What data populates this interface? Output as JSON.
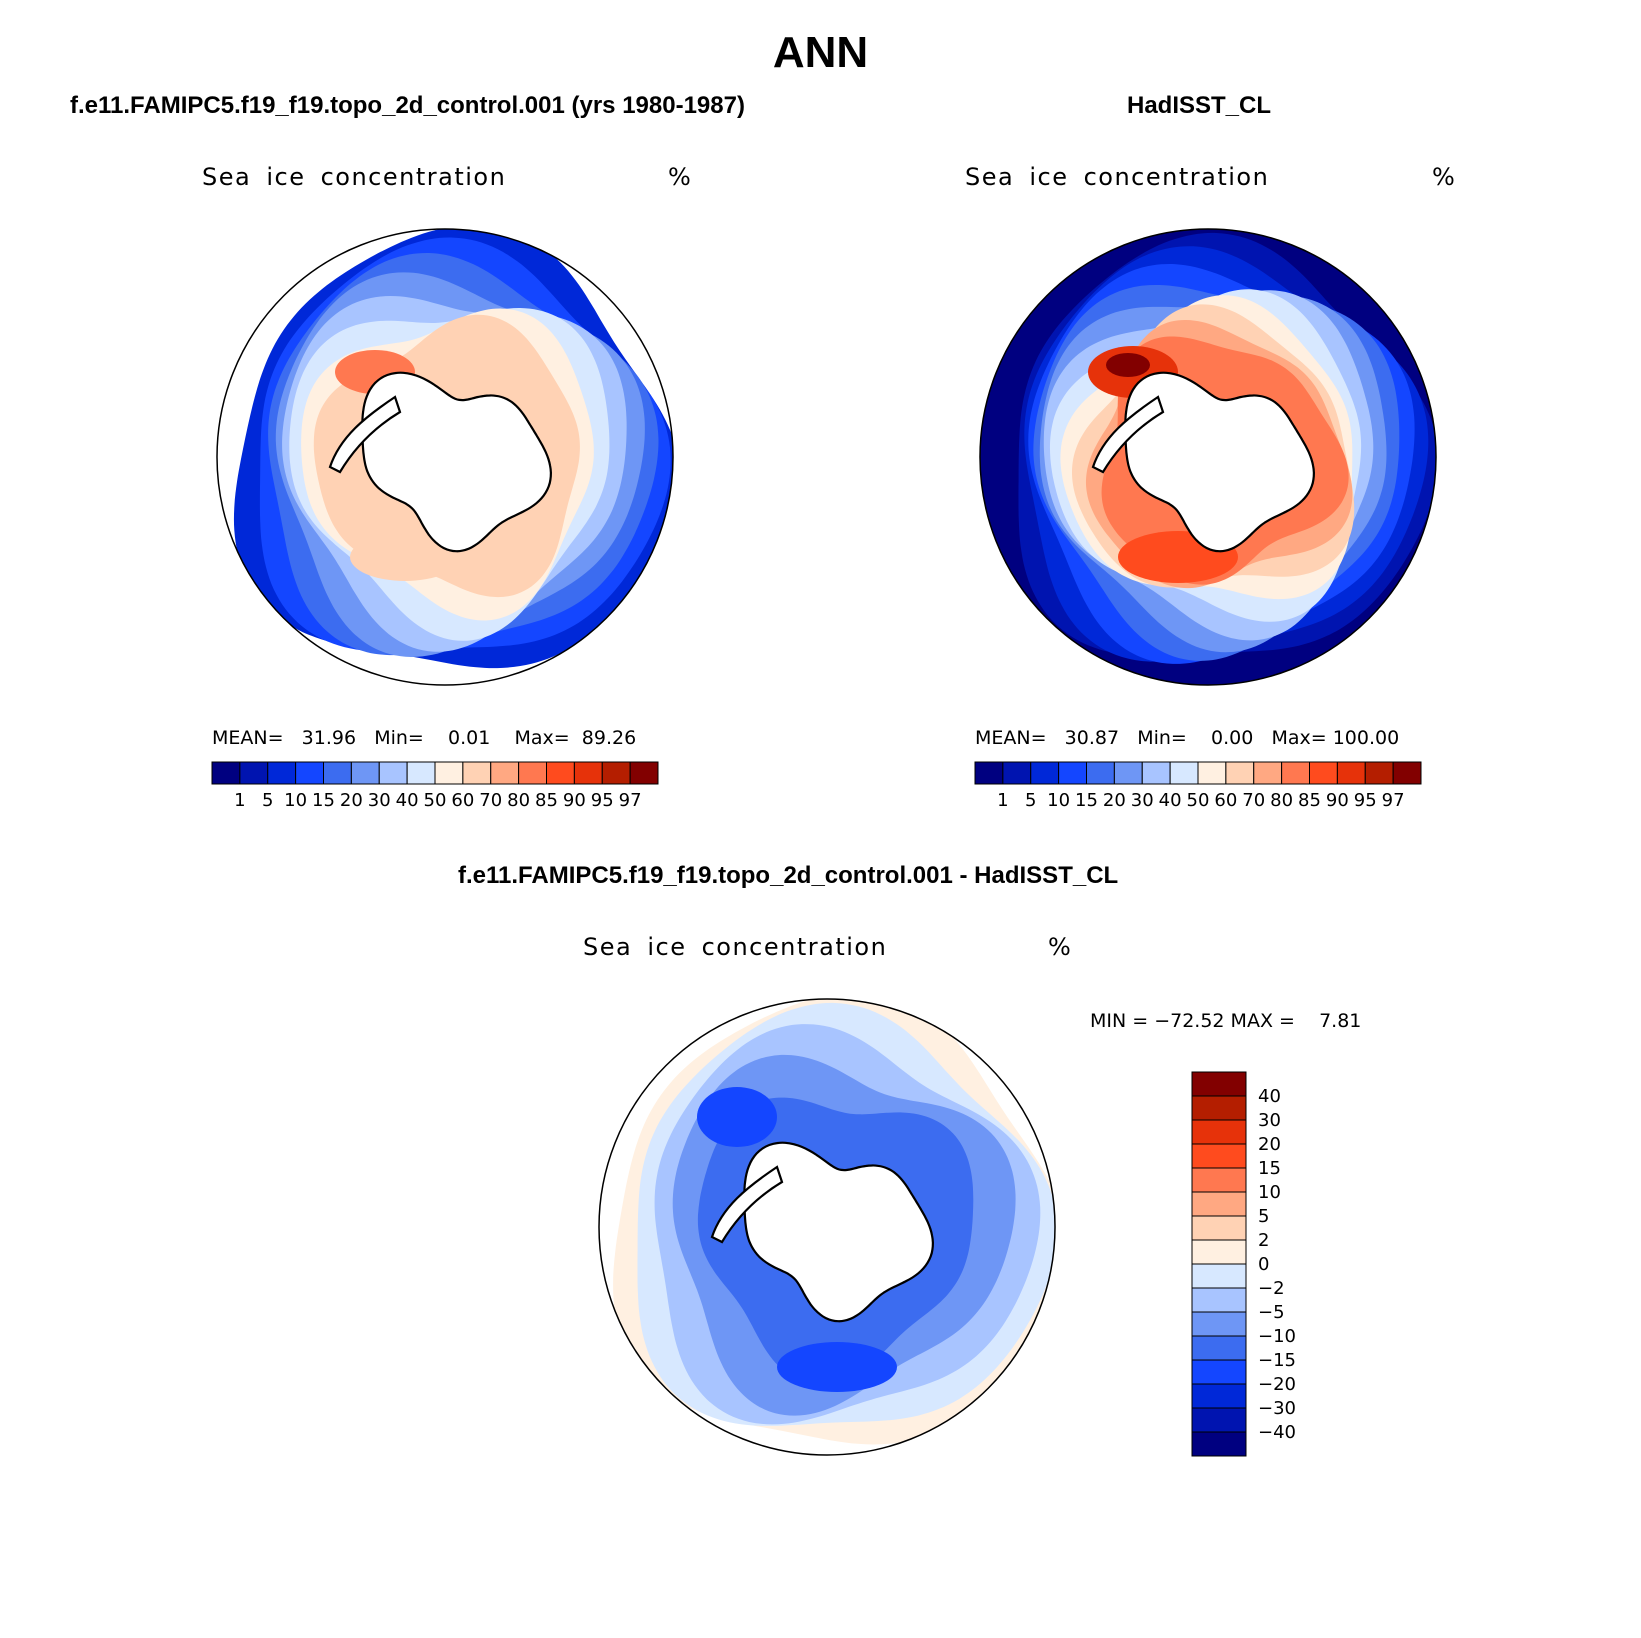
{
  "page": {
    "title": "ANN"
  },
  "colors": {
    "levels_main": [
      "#000080",
      "#0014b0",
      "#0028d8",
      "#1446ff",
      "#3c6cf0",
      "#6e96f5",
      "#a8c4ff",
      "#d7e8ff",
      "#fff0e1",
      "#ffd2b4",
      "#ffa882",
      "#ff7850",
      "#ff4b1e",
      "#e6320a",
      "#b41e00",
      "#820000"
    ],
    "levels_diff": [
      "#000080",
      "#0014b0",
      "#0028d8",
      "#1446ff",
      "#3c6cf0",
      "#6e96f5",
      "#a8c4ff",
      "#d7e8ff",
      "#fff0e1",
      "#ffd2b4",
      "#ffa882",
      "#ff7850",
      "#ff4b1e",
      "#e6320a",
      "#b41e00",
      "#820000"
    ],
    "land": "#ffffff",
    "coast": "#000000"
  },
  "chart_data": [
    {
      "type": "heatmap",
      "projection": "south polar stereographic",
      "case_title": "f.e11.FAMIPC5.f19_f19.topo_2d_control.001 (yrs 1980-1987)",
      "title": "Sea ice concentration",
      "units": "%",
      "stats": {
        "mean_label": "MEAN=",
        "mean": "31.96",
        "min_label": "Min=",
        "min": "0.01",
        "max_label": "Max=",
        "max": "89.26"
      },
      "colorbar_labels": [
        "1",
        "5",
        "10",
        "15",
        "20",
        "30",
        "40",
        "50",
        "60",
        "70",
        "80",
        "85",
        "90",
        "95",
        "97"
      ]
    },
    {
      "type": "heatmap",
      "projection": "south polar stereographic",
      "case_title": "HadISST_CL",
      "title": "Sea ice concentration",
      "units": "%",
      "stats": {
        "mean_label": "MEAN=",
        "mean": "30.87",
        "min_label": "Min=",
        "min": "0.00",
        "max_label": "Max=",
        "max": "100.00"
      },
      "colorbar_labels": [
        "1",
        "5",
        "10",
        "15",
        "20",
        "30",
        "40",
        "50",
        "60",
        "70",
        "80",
        "85",
        "90",
        "95",
        "97"
      ]
    },
    {
      "type": "heatmap",
      "projection": "south polar stereographic",
      "case_title": "f.e11.FAMIPC5.f19_f19.topo_2d_control.001 - HadISST_CL",
      "title": "Sea ice concentration",
      "units": "%",
      "stats_text": "MIN = −72.52 MAX =    7.81",
      "colorbar_labels": [
        "40",
        "30",
        "20",
        "15",
        "10",
        "5",
        "2",
        "0",
        "−2",
        "−5",
        "−10",
        "−15",
        "−20",
        "−30",
        "−40"
      ]
    }
  ]
}
